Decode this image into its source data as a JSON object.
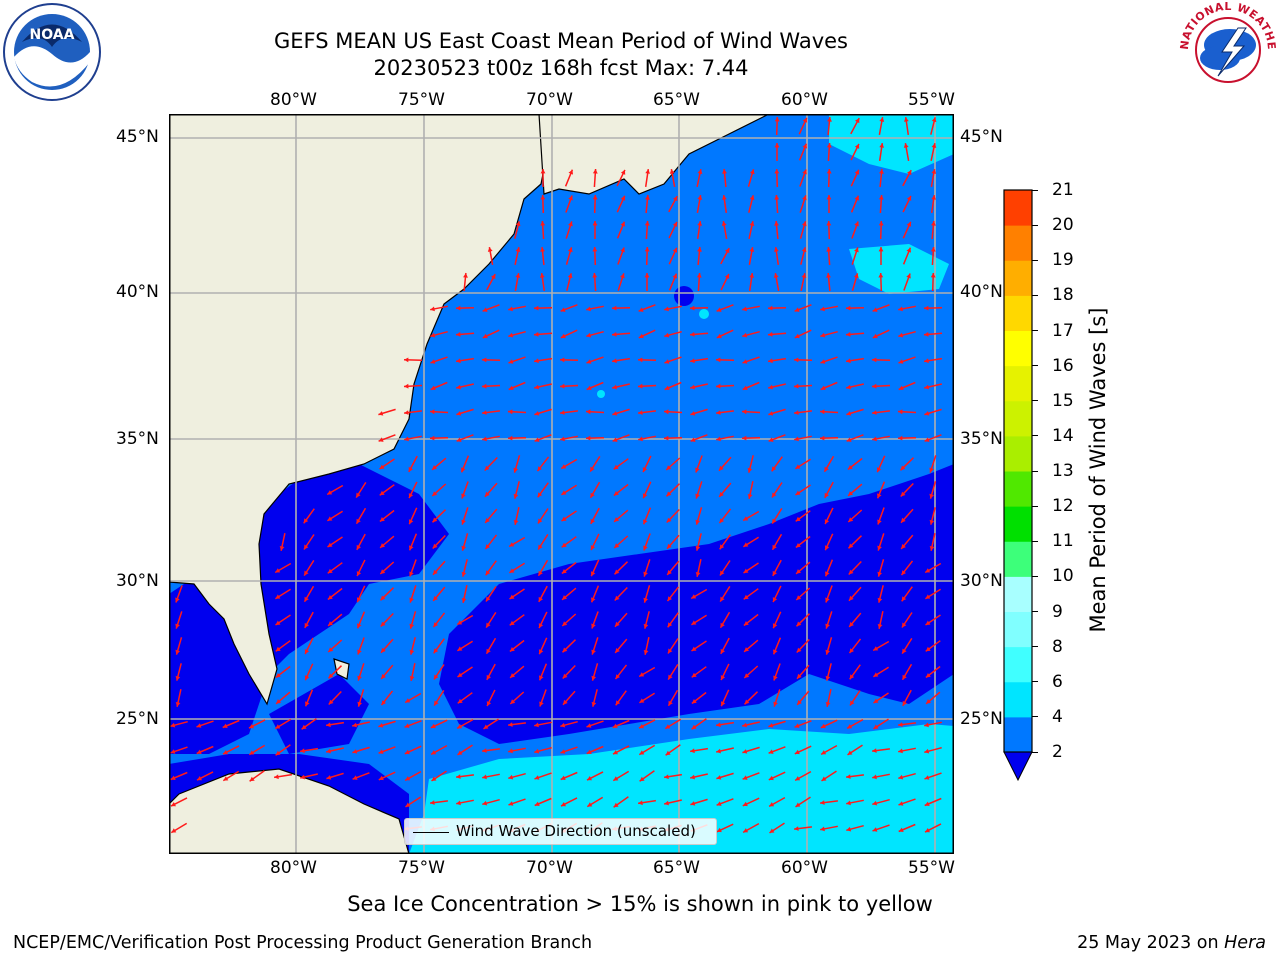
{
  "title": {
    "line1": "GEFS MEAN US East Coast Mean Period of Wind Waves",
    "line2": "20230523 t00z 168h fcst   Max: 7.44"
  },
  "map": {
    "lon_labels": [
      "80°W",
      "75°W",
      "70°W",
      "65°W",
      "60°W",
      "55°W"
    ],
    "lat_labels": [
      "45°N",
      "40°N",
      "35°N",
      "30°N",
      "25°N"
    ],
    "legend_label": "Wind Wave Direction (unscaled)",
    "arrow_color": "#ff1a1a",
    "land_color": "#efefdf",
    "gridline_color": "#b0b0b0"
  },
  "colorbar": {
    "label": "Mean Period of Wind Waves [s]",
    "ticks": [
      "2",
      "4",
      "6",
      "8",
      "9",
      "10",
      "11",
      "12",
      "13",
      "14",
      "15",
      "16",
      "17",
      "18",
      "19",
      "20",
      "21"
    ],
    "colors": [
      "#0078ff",
      "#00e5ff",
      "#40ffff",
      "#80ffff",
      "#a8ffff",
      "#3dff7a",
      "#00e000",
      "#50e800",
      "#aaee00",
      "#ccf200",
      "#e6f200",
      "#ffff00",
      "#ffd800",
      "#ffae00",
      "#ff8000",
      "#ff4000",
      "#ff1a00"
    ],
    "under_color": "#0000ee"
  },
  "note": "Sea Ice Concentration > 15% is shown in pink to yellow",
  "footer": {
    "left": "NCEP/EMC/Verification Post Processing Product Generation Branch",
    "right_prefix": "25 May 2023 on ",
    "right_machine": "Hera"
  },
  "logos": {
    "noaa_text": "NOAA",
    "nws_text": "NATIONAL WEATHER SERVICE"
  }
}
